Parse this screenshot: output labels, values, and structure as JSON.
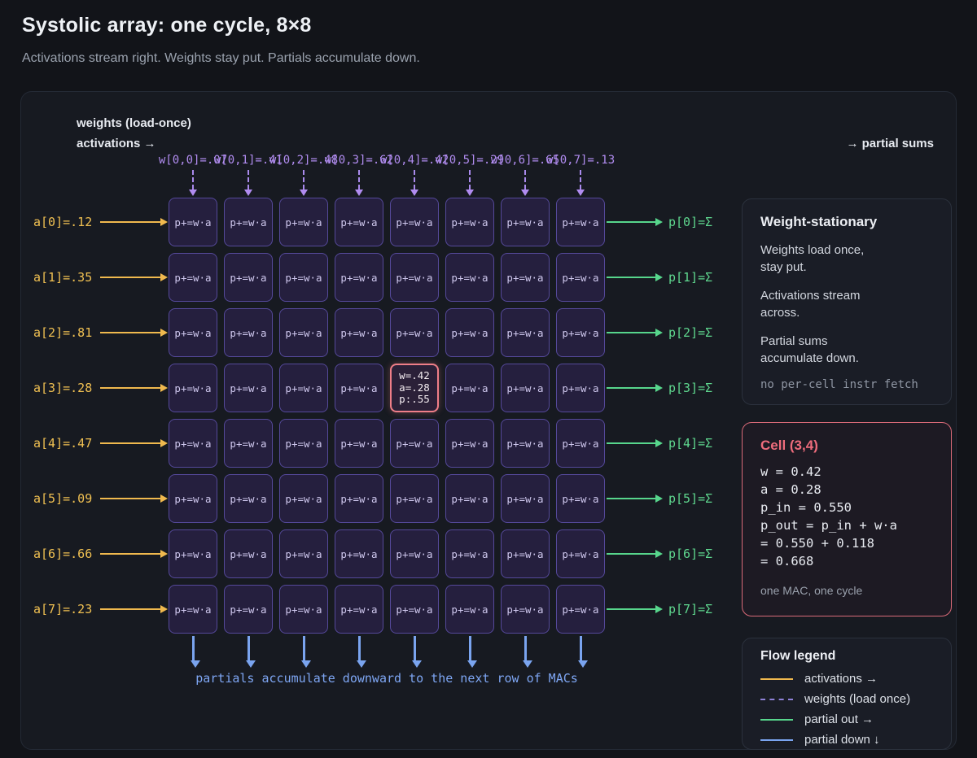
{
  "page": {
    "title": "Systolic array: one cycle, 8×8",
    "subtitle": "Activations stream right. Weights stay put. Partials accumulate down."
  },
  "board": {
    "weights_header": "weights (load-once)",
    "activations_header": "activations →",
    "partial_sums_header": "→ partial sums",
    "weight_labels": [
      "w[0,0]=.07",
      "w[0,1]=.41",
      "w[0,2]=.48",
      "w[0,3]=.62",
      "w[0,4]=.42",
      "w[0,5]=.29",
      "w[0,6]=.65",
      "w[0,7]=.13"
    ],
    "activation_labels": [
      "a[0]=.12",
      "a[1]=.35",
      "a[2]=.81",
      "a[3]=.28",
      "a[4]=.47",
      "a[5]=.09",
      "a[6]=.66",
      "a[7]=.23"
    ],
    "partial_labels": [
      "p[0]=Σ",
      "p[1]=Σ",
      "p[2]=Σ",
      "p[3]=Σ",
      "p[4]=Σ",
      "p[5]=Σ",
      "p[6]=Σ",
      "p[7]=Σ"
    ],
    "rows": 8,
    "cols": 8,
    "cell_label": "p+=w·a",
    "highlight": {
      "row": 3,
      "col": 4,
      "lines": [
        "w=.42",
        "a=.28",
        "p:.55"
      ]
    },
    "bottom_caption": "partials accumulate downward to the next row of MACs"
  },
  "panels": {
    "weight_stationary": {
      "title": "Weight-stationary",
      "paragraphs": [
        "Weights load once,\nstay put.",
        "Activations stream\nacross.",
        "Partial sums\naccumulate down."
      ],
      "note": "no per-cell instr fetch"
    },
    "cell_detail": {
      "title": "Cell (3,4)",
      "lines": [
        "w = 0.42",
        "a = 0.28",
        "p_in = 0.550",
        "p_out = p_in + w·a",
        "= 0.550 + 0.118",
        "= 0.668"
      ],
      "note": "one MAC, one cycle"
    },
    "flow_legend": {
      "title": "Flow legend",
      "items": [
        {
          "label": "activations →",
          "color": "#f0b94e",
          "style": "solid"
        },
        {
          "label": "weights (load once)",
          "color": "#8f82d8",
          "style": "dashed"
        },
        {
          "label": "partial out →",
          "color": "#57d68c",
          "style": "solid"
        },
        {
          "label": "partial down ↓",
          "color": "#7aa4ef",
          "style": "solid"
        }
      ]
    }
  },
  "colors": {
    "activation": "#f0c052",
    "weight": "#b18cf0",
    "partial_out": "#5fd88f",
    "partial_down": "#7aa4ef",
    "highlight": "#ee6c7c"
  }
}
